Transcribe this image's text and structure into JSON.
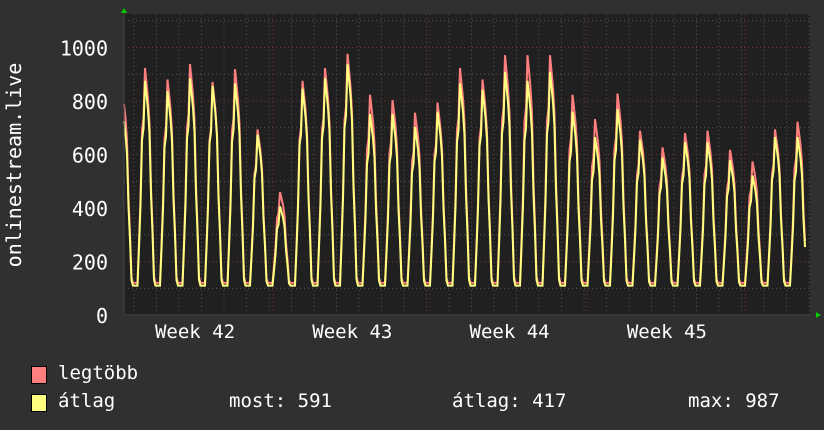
{
  "chart_data": {
    "type": "line",
    "ylabel": "onlinestream.live",
    "ylim": [
      0,
      1125
    ],
    "yticks": [
      0,
      200,
      400,
      600,
      800,
      1000
    ],
    "xtick_labels": [
      "Week 42",
      "Week 43",
      "Week 44",
      "Week 45"
    ],
    "grid": true,
    "legend_placement": "bottom-left",
    "series": [
      {
        "name": "legtöbb",
        "color": "#ff7f7f",
        "daily_min": 120,
        "daily_peaks": [
          870,
          960,
          915,
          975,
          905,
          955,
          720,
          475,
          910,
          960,
          1015,
          855,
          835,
          785,
          825,
          960,
          915,
          1010,
          1010,
          1010,
          855,
          760,
          860,
          715,
          650,
          705,
          715,
          640,
          595,
          720,
          750
        ]
      },
      {
        "name": "átlag",
        "color": "#ffff7f",
        "daily_min": 110,
        "daily_peaks": [
          800,
          910,
          870,
          920,
          890,
          900,
          700,
          420,
          880,
          920,
          975,
          780,
          780,
          730,
          790,
          900,
          875,
          945,
          910,
          945,
          790,
          690,
          800,
          680,
          610,
          670,
          670,
          600,
          540,
          690,
          690
        ]
      }
    ]
  },
  "legend": {
    "max_label": "legtöbb",
    "avg_label": "átlag",
    "stats": {
      "now": "most: 591",
      "avg": "átlag: 417",
      "max": "max: 987"
    }
  }
}
